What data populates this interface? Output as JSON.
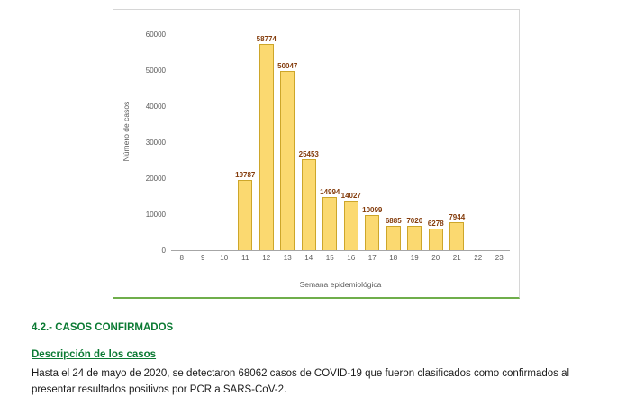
{
  "document": {
    "section_heading": "4.2.- CASOS CONFIRMADOS",
    "subheading": "Descripción de los casos",
    "paragraph": "Hasta el 24 de mayo de 2020, se detectaron 68062 casos de COVID-19 que fueron clasificados como confirmados al presentar resultados positivos por PCR a SARS-CoV-2."
  },
  "colors": {
    "heading_green": "#0B7A33",
    "bar_fill": "#FBD970",
    "bar_border": "#CDA62A",
    "data_label": "#843C0C",
    "axis_text": "#595959",
    "axis_green_line": "#6FAE4B"
  },
  "chart_data": {
    "type": "bar",
    "title": "",
    "xlabel": "Semana epidemiológica",
    "ylabel": "Número de casos",
    "categories": [
      8,
      9,
      10,
      11,
      12,
      13,
      14,
      15,
      16,
      17,
      18,
      19,
      20,
      21,
      22,
      23
    ],
    "values": [
      null,
      null,
      null,
      19787,
      58774,
      50047,
      25453,
      14994,
      14027,
      10099,
      6885,
      7020,
      6278,
      7944,
      null,
      null
    ],
    "ylim": [
      0,
      60000
    ],
    "yticks": [
      0,
      10000,
      20000,
      30000,
      40000,
      50000,
      60000
    ],
    "grid": false,
    "legend": "none",
    "bar_color": "#FBD970",
    "bar_border_color": "#CDA62A",
    "label_color": "#843C0C"
  }
}
